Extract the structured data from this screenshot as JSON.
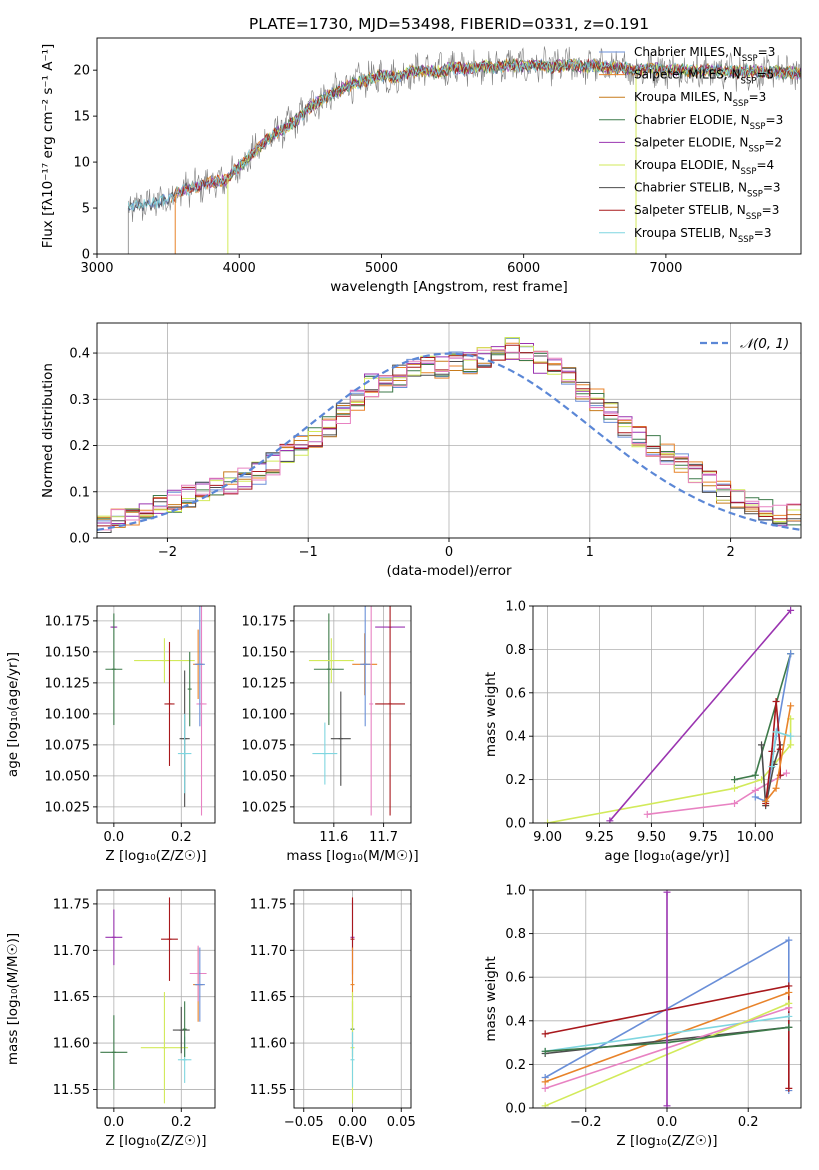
{
  "title": "PLATE=1730, MJD=53498, FIBERID=0331, z=0.191",
  "colors": {
    "chabrier_miles": "#6a8fd8",
    "salpeter_miles": "#e8832a",
    "kroupa_miles": "#c77b1c",
    "chabrier_elodie": "#3d7a4a",
    "salpeter_elodie": "#9a34b0",
    "kroupa_elodie": "#d2ea5a",
    "chabrier_stelib": "#4d4d4d",
    "salpeter_stelib": "#a8181c",
    "kroupa_stelib": "#7fd6e0",
    "pink": "#e882c2"
  },
  "chart_data": [
    {
      "id": "spectrum",
      "type": "line",
      "xlabel": "wavelength [Angstrom, rest frame]",
      "ylabel": "Flux [fλ10⁻¹⁷ erg cm⁻² s⁻¹ A⁻¹]",
      "xlim": [
        3000,
        7950
      ],
      "ylim": [
        0,
        23.5
      ],
      "xticks": [
        "3000",
        "4000",
        "5000",
        "6000",
        "7000"
      ],
      "yticks": [
        "0",
        "5",
        "10",
        "15",
        "20"
      ],
      "legend_position": "right",
      "legend": [
        {
          "name": "Chabrier MILES, N",
          "sub": "SSP",
          "tail": "=3",
          "color_key": "chabrier_miles"
        },
        {
          "name": "Salpeter MILES, N",
          "sub": "SSP",
          "tail": "=5",
          "color_key": "salpeter_miles"
        },
        {
          "name": "Kroupa MILES, N",
          "sub": "SSP",
          "tail": "=3",
          "color_key": "kroupa_miles"
        },
        {
          "name": "Chabrier ELODIE, N",
          "sub": "SSP",
          "tail": "=3",
          "color_key": "chabrier_elodie"
        },
        {
          "name": "Salpeter ELODIE, N",
          "sub": "SSP",
          "tail": "=2",
          "color_key": "salpeter_elodie"
        },
        {
          "name": "Kroupa ELODIE, N",
          "sub": "SSP",
          "tail": "=4",
          "color_key": "kroupa_elodie"
        },
        {
          "name": "Chabrier STELIB, N",
          "sub": "SSP",
          "tail": "=3",
          "color_key": "chabrier_stelib"
        },
        {
          "name": "Salpeter STELIB, N",
          "sub": "SSP",
          "tail": "=3",
          "color_key": "salpeter_stelib"
        },
        {
          "name": "Kroupa STELIB, N",
          "sub": "SSP",
          "tail": "=3",
          "color_key": "kroupa_stelib"
        }
      ],
      "trend": {
        "x": [
          3220,
          3300,
          3400,
          3500,
          3600,
          3700,
          3800,
          3900,
          4000,
          4100,
          4200,
          4300,
          4400,
          4500,
          4600,
          4700,
          4800,
          4900,
          5000,
          5100,
          5200,
          5300,
          5400,
          5500,
          5600,
          5700,
          5800,
          5900,
          6000,
          6100,
          6200,
          6300,
          6400,
          6500,
          6600,
          6700,
          6800,
          6900,
          7000,
          7100,
          7200,
          7300,
          7400,
          7500,
          7600,
          7700,
          7800,
          7950
        ],
        "y": [
          5.0,
          5.3,
          5.5,
          6.0,
          7.0,
          7.3,
          7.8,
          8.0,
          9.5,
          11.0,
          12.5,
          13.5,
          14.5,
          16.0,
          17.0,
          17.8,
          18.5,
          19.0,
          19.5,
          19.2,
          19.8,
          20.0,
          19.8,
          20.3,
          20.1,
          20.5,
          20.3,
          20.6,
          20.4,
          20.5,
          20.3,
          20.6,
          20.4,
          20.5,
          20.3,
          20.2,
          20.0,
          20.2,
          20.0,
          20.1,
          19.9,
          20.0,
          19.9,
          19.8,
          19.9,
          19.7,
          19.8,
          19.7
        ]
      },
      "series_starts": [
        3220,
        3550,
        3520,
        3940,
        3570,
        3920,
        3220,
        3520,
        3220
      ],
      "vertical_lines": [
        {
          "x": 3920,
          "color_key": "kroupa_elodie"
        },
        {
          "x": 3550,
          "color_key": "salpeter_miles"
        },
        {
          "x": 6790,
          "color_key": "kroupa_elodie"
        }
      ]
    },
    {
      "id": "residual-histogram",
      "type": "histogram",
      "xlabel": "(data-model)/error",
      "ylabel": "Normed distribution",
      "xlim": [
        -2.5,
        2.5
      ],
      "ylim": [
        0,
        0.465
      ],
      "xticks": [
        "-2",
        "-1",
        "0",
        "1",
        "2"
      ],
      "yticks": [
        "0.0",
        "0.1",
        "0.2",
        "0.3",
        "0.4"
      ],
      "bin_width": 0.1,
      "legend_position": "top-right",
      "reference_curve": {
        "name": "N(0,1)",
        "mu": 0,
        "sigma": 1
      },
      "envelope": [
        0.03,
        0.04,
        0.05,
        0.06,
        0.07,
        0.08,
        0.09,
        0.1,
        0.11,
        0.12,
        0.13,
        0.14,
        0.16,
        0.18,
        0.2,
        0.22,
        0.24,
        0.27,
        0.3,
        0.33,
        0.34,
        0.35,
        0.37,
        0.37,
        0.37,
        0.38,
        0.38,
        0.39,
        0.4,
        0.41,
        0.4,
        0.38,
        0.37,
        0.35,
        0.32,
        0.3,
        0.27,
        0.24,
        0.22,
        0.2,
        0.18,
        0.16,
        0.14,
        0.12,
        0.1,
        0.08,
        0.07,
        0.06,
        0.05,
        0.05
      ]
    },
    {
      "id": "age-vs-metallicity",
      "type": "errorbar",
      "xlabel": "Z [log₁₀(Z/Z☉)]",
      "ylabel": "age  [log₁₀(age/yr)]",
      "xlim": [
        -0.05,
        0.3
      ],
      "ylim": [
        10.012,
        10.187
      ],
      "xticks": [
        0,
        0.2
      ],
      "yticks": [
        10.025,
        10.05,
        10.075,
        10.1,
        10.125,
        10.15,
        10.175
      ],
      "points": [
        {
          "x": 0.0,
          "y": 10.17,
          "xerr": 0.01,
          "yerr": 0.0,
          "color_key": "salpeter_elodie"
        },
        {
          "x": 0.0,
          "y": 10.136,
          "xerr": 0.025,
          "yerr": 0.045,
          "color_key": "chabrier_elodie"
        },
        {
          "x": 0.15,
          "y": 10.143,
          "xerr": 0.09,
          "yerr": 0.018,
          "color_key": "kroupa_elodie"
        },
        {
          "x": 0.165,
          "y": 10.108,
          "xerr": 0.015,
          "yerr": 0.05,
          "color_key": "salpeter_stelib"
        },
        {
          "x": 0.21,
          "y": 10.08,
          "xerr": 0.015,
          "yerr": 0.055,
          "color_key": "chabrier_stelib"
        },
        {
          "x": 0.21,
          "y": 10.068,
          "xerr": 0.02,
          "yerr": 0.032,
          "color_key": "kroupa_stelib"
        },
        {
          "x": 0.225,
          "y": 10.12,
          "xerr": 0.0,
          "yerr": 0.03,
          "color_key": "chabrier_elodie"
        },
        {
          "x": 0.25,
          "y": 10.14,
          "xerr": 0.015,
          "yerr": 0.028,
          "color_key": "salpeter_miles"
        },
        {
          "x": 0.26,
          "y": 10.108,
          "xerr": 0.015,
          "yerr": 0.09,
          "color_key": "pink"
        },
        {
          "x": 0.255,
          "y": 10.14,
          "xerr": 0.015,
          "yerr": 0.05,
          "color_key": "chabrier_miles"
        }
      ]
    },
    {
      "id": "age-vs-mass",
      "type": "errorbar",
      "xlabel": "mass [log₁₀(M/M☉)]",
      "ylabel": "",
      "xlim": [
        11.52,
        11.755
      ],
      "ylim": [
        10.012,
        10.187
      ],
      "xticks": [
        11.6,
        11.7
      ],
      "yticks": [
        10.025,
        10.05,
        10.075,
        10.1,
        10.125,
        10.15,
        10.175
      ],
      "points": [
        {
          "x": 11.713,
          "y": 10.17,
          "xerr": 0.03,
          "yerr": 0.0,
          "color_key": "salpeter_elodie"
        },
        {
          "x": 11.59,
          "y": 10.136,
          "xerr": 0.03,
          "yerr": 0.045,
          "color_key": "chabrier_elodie"
        },
        {
          "x": 11.595,
          "y": 10.143,
          "xerr": 0.045,
          "yerr": 0.018,
          "color_key": "kroupa_elodie"
        },
        {
          "x": 11.713,
          "y": 10.108,
          "xerr": 0.03,
          "yerr": 0.09,
          "color_key": "salpeter_stelib"
        },
        {
          "x": 11.614,
          "y": 10.08,
          "xerr": 0.02,
          "yerr": 0.038,
          "color_key": "chabrier_stelib"
        },
        {
          "x": 11.582,
          "y": 10.068,
          "xerr": 0.025,
          "yerr": 0.025,
          "color_key": "kroupa_stelib"
        },
        {
          "x": 11.662,
          "y": 10.14,
          "xerr": 0.025,
          "yerr": 0.025,
          "color_key": "salpeter_miles"
        },
        {
          "x": 11.675,
          "y": 10.108,
          "xerr": 0.0,
          "yerr": 0.09,
          "color_key": "pink"
        },
        {
          "x": 11.663,
          "y": 10.14,
          "xerr": 0.01,
          "yerr": 0.05,
          "color_key": "chabrier_miles"
        }
      ]
    },
    {
      "id": "mass-weight-vs-age",
      "type": "line",
      "xlabel": "age  [log₁₀(age/yr)]",
      "ylabel": "mass weight",
      "xlim": [
        8.93,
        10.22
      ],
      "ylim": [
        0,
        1.0
      ],
      "xticks": [
        9.0,
        9.25,
        9.5,
        9.75,
        10.0
      ],
      "yticks": [
        0.0,
        0.2,
        0.4,
        0.6,
        0.8,
        1.0
      ],
      "series": [
        {
          "color_key": "kroupa_elodie",
          "x": [
            9.0,
            9.9,
            10.03,
            10.17,
            10.17
          ],
          "y": [
            0.0,
            0.16,
            0.2,
            0.36,
            0.48
          ]
        },
        {
          "color_key": "salpeter_elodie",
          "x": [
            9.3,
            10.17
          ],
          "y": [
            0.01,
            0.98
          ]
        },
        {
          "color_key": "pink",
          "x": [
            9.48,
            9.9,
            10.0,
            10.15
          ],
          "y": [
            0.04,
            0.09,
            0.15,
            0.23
          ]
        },
        {
          "color_key": "chabrier_elodie",
          "x": [
            9.9,
            10.0,
            10.17
          ],
          "y": [
            0.2,
            0.22,
            0.78
          ]
        },
        {
          "color_key": "chabrier_miles",
          "x": [
            10.0,
            10.05,
            10.1,
            10.17
          ],
          "y": [
            0.12,
            0.1,
            0.4,
            0.78
          ]
        },
        {
          "color_key": "chabrier_stelib",
          "x": [
            10.03,
            10.05,
            10.09,
            10.12
          ],
          "y": [
            0.36,
            0.08,
            0.27,
            0.36
          ]
        },
        {
          "color_key": "salpeter_stelib",
          "x": [
            10.05,
            10.08,
            10.1,
            10.12,
            10.12
          ],
          "y": [
            0.09,
            0.33,
            0.56,
            0.34,
            0.22
          ]
        },
        {
          "color_key": "salpeter_miles",
          "x": [
            10.05,
            10.1,
            10.17
          ],
          "y": [
            0.1,
            0.16,
            0.54
          ]
        },
        {
          "color_key": "kroupa_stelib",
          "x": [
            10.08,
            10.1,
            10.17
          ],
          "y": [
            0.26,
            0.42,
            0.4
          ]
        }
      ]
    },
    {
      "id": "mass-vs-metallicity",
      "type": "errorbar",
      "xlabel": "Z [log₁₀(Z/Z☉)]",
      "ylabel": "mass [log₁₀(M/M☉)]",
      "xlim": [
        -0.05,
        0.3
      ],
      "ylim": [
        11.53,
        11.765
      ],
      "xticks": [
        0,
        0.2
      ],
      "yticks": [
        11.55,
        11.6,
        11.65,
        11.7,
        11.75
      ],
      "points": [
        {
          "x": 0.0,
          "y": 11.714,
          "xerr": 0.025,
          "yerr": 0.03,
          "color_key": "salpeter_elodie"
        },
        {
          "x": 0.0,
          "y": 11.59,
          "xerr": 0.04,
          "yerr": 0.04,
          "color_key": "chabrier_elodie"
        },
        {
          "x": 0.15,
          "y": 11.595,
          "xerr": 0.07,
          "yerr": 0.06,
          "color_key": "kroupa_elodie"
        },
        {
          "x": 0.165,
          "y": 11.712,
          "xerr": 0.025,
          "yerr": 0.045,
          "color_key": "salpeter_stelib"
        },
        {
          "x": 0.2,
          "y": 11.614,
          "xerr": 0.025,
          "yerr": 0.025,
          "color_key": "chabrier_stelib"
        },
        {
          "x": 0.21,
          "y": 11.582,
          "xerr": 0.02,
          "yerr": 0.025,
          "color_key": "kroupa_stelib"
        },
        {
          "x": 0.21,
          "y": 11.615,
          "xerr": 0.0,
          "yerr": 0.03,
          "color_key": "chabrier_elodie"
        },
        {
          "x": 0.25,
          "y": 11.663,
          "xerr": 0.015,
          "yerr": 0.04,
          "color_key": "salpeter_miles"
        },
        {
          "x": 0.25,
          "y": 11.675,
          "xerr": 0.025,
          "yerr": 0.03,
          "color_key": "pink"
        },
        {
          "x": 0.255,
          "y": 11.663,
          "xerr": 0.015,
          "yerr": 0.04,
          "color_key": "chabrier_miles"
        }
      ]
    },
    {
      "id": "mass-vs-reddening",
      "type": "errorbar",
      "xlabel": "E(B-V)",
      "ylabel": "",
      "xlim": [
        -0.06,
        0.06
      ],
      "ylim": [
        11.53,
        11.765
      ],
      "xticks": [
        "-0.05",
        "0.00",
        "0.05"
      ],
      "yticks": [
        11.55,
        11.6,
        11.65,
        11.7,
        11.75
      ],
      "points": [
        {
          "x": 0.0,
          "y": 11.714,
          "xerr": 0.0,
          "yerr": 0.04,
          "color_key": "salpeter_elodie"
        },
        {
          "x": 0.0,
          "y": 11.712,
          "xerr": 0.0,
          "yerr": 0.045,
          "color_key": "salpeter_stelib"
        },
        {
          "x": 0.0,
          "y": 11.663,
          "xerr": 0.0,
          "yerr": 0.04,
          "color_key": "salpeter_miles"
        },
        {
          "x": 0.0,
          "y": 11.615,
          "xerr": 0.0,
          "yerr": 0.03,
          "color_key": "chabrier_elodie"
        },
        {
          "x": 0.0,
          "y": 11.595,
          "xerr": 0.0,
          "yerr": 0.06,
          "color_key": "kroupa_elodie"
        },
        {
          "x": 0.0,
          "y": 11.582,
          "xerr": 0.0,
          "yerr": 0.03,
          "color_key": "kroupa_stelib"
        }
      ]
    },
    {
      "id": "mass-weight-vs-metallicity",
      "type": "line",
      "xlabel": "Z [log₁₀(Z/Z☉)]",
      "ylabel": "mass weight",
      "xlim": [
        -0.33,
        0.33
      ],
      "ylim": [
        0,
        1.0
      ],
      "xticks": [
        "-0.2",
        "0.0",
        "0.2"
      ],
      "yticks": [
        0.0,
        0.2,
        0.4,
        0.6,
        0.8,
        1.0
      ],
      "series": [
        {
          "color_key": "chabrier_miles",
          "x": [
            -0.3,
            0.3,
            0.3
          ],
          "y": [
            0.14,
            0.77,
            0.08
          ]
        },
        {
          "color_key": "salpeter_stelib",
          "x": [
            -0.3,
            0.3,
            0.3
          ],
          "y": [
            0.34,
            0.56,
            0.09
          ]
        },
        {
          "color_key": "salpeter_miles",
          "x": [
            -0.3,
            0.3
          ],
          "y": [
            0.12,
            0.53
          ]
        },
        {
          "color_key": "chabrier_stelib",
          "x": [
            -0.3,
            0.3
          ],
          "y": [
            0.25,
            0.37
          ]
        },
        {
          "color_key": "kroupa_stelib",
          "x": [
            -0.3,
            0.3
          ],
          "y": [
            0.26,
            0.42
          ]
        },
        {
          "color_key": "pink",
          "x": [
            -0.3,
            0.3
          ],
          "y": [
            0.09,
            0.46
          ]
        },
        {
          "color_key": "kroupa_elodie",
          "x": [
            -0.3,
            0.3
          ],
          "y": [
            0.01,
            0.48
          ]
        },
        {
          "color_key": "chabrier_elodie",
          "x": [
            -0.3,
            0.0,
            0.3
          ],
          "y": [
            0.26,
            0.3,
            0.37
          ]
        },
        {
          "color_key": "salpeter_elodie",
          "x": [
            0.0,
            0.0
          ],
          "y": [
            0.01,
            0.99
          ]
        }
      ]
    }
  ]
}
